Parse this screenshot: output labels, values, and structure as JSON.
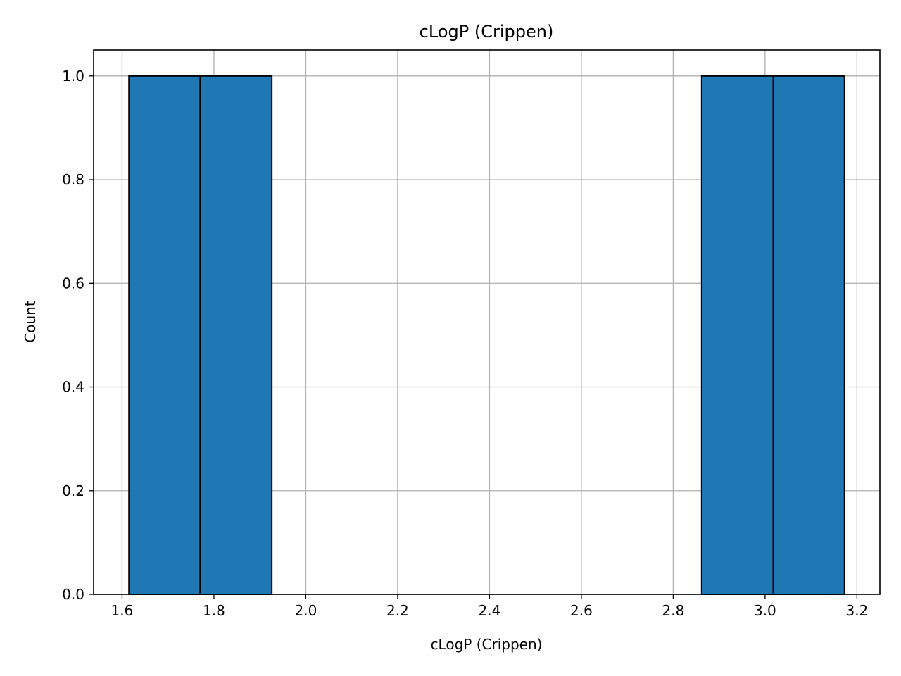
{
  "chart_data": {
    "type": "bar",
    "title": "cLogP (Crippen)",
    "xlabel": "cLogP (Crippen)",
    "ylabel": "Count",
    "bins": [
      {
        "start": 1.615,
        "end": 1.77,
        "count": 1
      },
      {
        "start": 1.77,
        "end": 1.926,
        "count": 1
      },
      {
        "start": 1.926,
        "end": 2.082,
        "count": 0
      },
      {
        "start": 2.082,
        "end": 2.238,
        "count": 0
      },
      {
        "start": 2.238,
        "end": 2.394,
        "count": 0
      },
      {
        "start": 2.394,
        "end": 2.55,
        "count": 0
      },
      {
        "start": 2.55,
        "end": 2.706,
        "count": 0
      },
      {
        "start": 2.706,
        "end": 2.862,
        "count": 0
      },
      {
        "start": 2.862,
        "end": 3.018,
        "count": 1
      },
      {
        "start": 3.018,
        "end": 3.173,
        "count": 1
      }
    ],
    "xlim": [
      1.538,
      3.25
    ],
    "ylim": [
      0,
      1.05
    ],
    "xticks": [
      1.6,
      1.8,
      2.0,
      2.2,
      2.4,
      2.6,
      2.8,
      3.0,
      3.2
    ],
    "xtick_labels": [
      "1.6",
      "1.8",
      "2.0",
      "2.2",
      "2.4",
      "2.6",
      "2.8",
      "3.0",
      "3.2"
    ],
    "yticks": [
      0.0,
      0.2,
      0.4,
      0.6,
      0.8,
      1.0
    ],
    "ytick_labels": [
      "0.0",
      "0.2",
      "0.4",
      "0.6",
      "0.8",
      "1.0"
    ],
    "grid": true,
    "colors": {
      "bar_fill": "#1f77b4",
      "bar_edge": "#000000",
      "grid": "#b0b0b0"
    }
  }
}
